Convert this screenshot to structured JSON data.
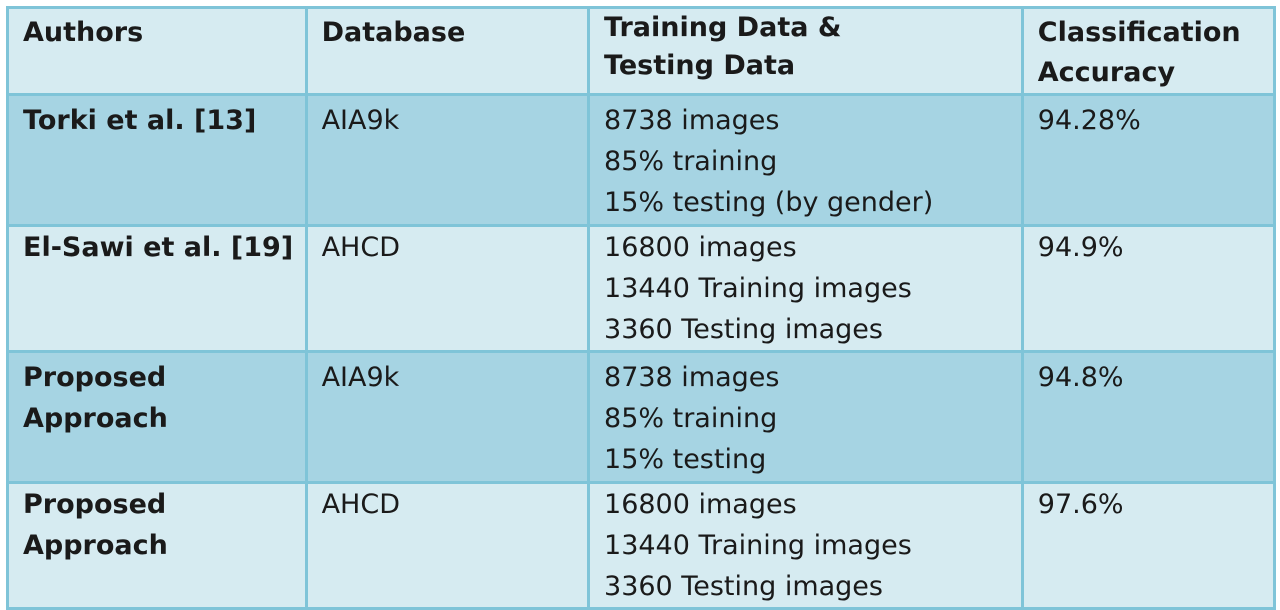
{
  "table": {
    "headers": [
      "Authors",
      "Database",
      " Training Data &\nTesting Data",
      "Classification\nAccuracy"
    ],
    "rows": [
      {
        "authors": "Torki et al. [13]",
        "database": "AIA9k",
        "training": [
          "8738 images",
          "85% training",
          "15% testing (by gender)"
        ],
        "accuracy": "94.28%"
      },
      {
        "authors": "El-Sawi et al. [19]",
        "database": "AHCD",
        "training": [
          "16800 images",
          "13440 Training images",
          "3360 Testing images"
        ],
        "accuracy": "94.9%"
      },
      {
        "authors": "Proposed Approach",
        "database": "AIA9k",
        "training": [
          "8738 images",
          "85% training",
          "15% testing"
        ],
        "accuracy": "94.8%"
      },
      {
        "authors": "Proposed Approach",
        "database": "AHCD",
        "training": [
          "16800 images",
          "13440 Training images",
          "3360 Testing images"
        ],
        "accuracy": "97.6%"
      }
    ]
  }
}
